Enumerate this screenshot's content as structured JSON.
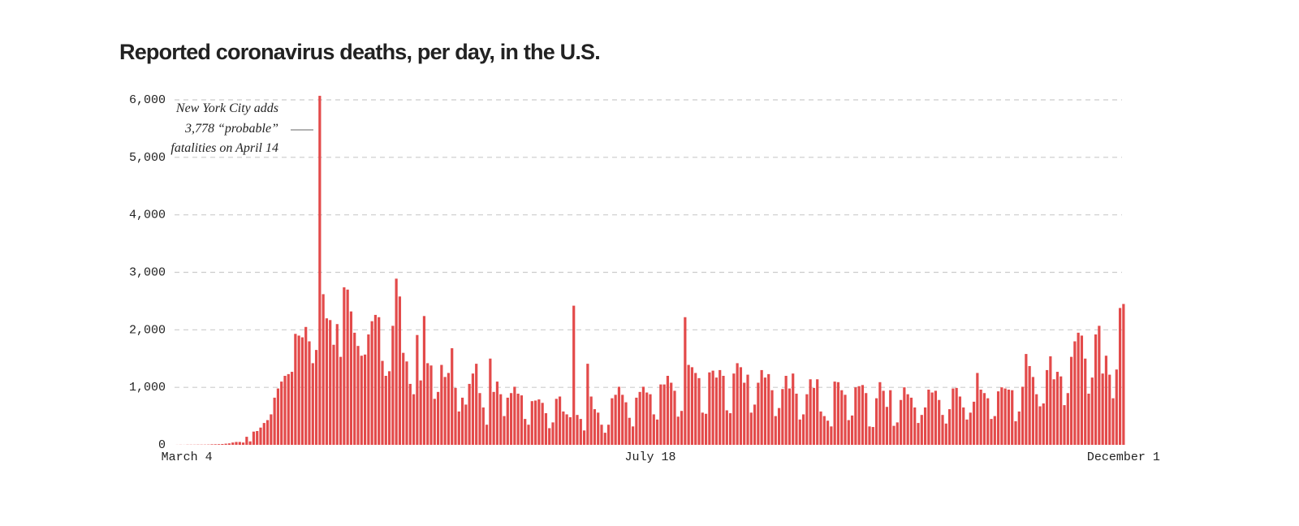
{
  "chart_data": {
    "type": "bar",
    "title": "Reported coronavirus deaths, per day, in the U.S.",
    "annotation": [
      "New York City adds",
      "3,778 “probable”",
      "fatalities on April 14"
    ],
    "categories": [
      "March 4",
      null,
      null,
      null,
      null,
      null,
      null,
      null,
      null,
      null,
      null,
      null,
      null,
      null,
      null,
      null,
      null,
      null,
      null,
      null,
      null,
      null,
      null,
      null,
      null,
      null,
      null,
      null,
      null,
      null,
      null,
      null,
      null,
      null,
      null,
      null,
      null,
      null,
      null,
      null,
      null,
      null,
      null,
      null,
      null,
      null,
      null,
      null,
      null,
      null,
      null,
      null,
      null,
      null,
      null,
      null,
      null,
      null,
      null,
      null,
      null,
      null,
      null,
      null,
      null,
      null,
      null,
      null,
      null,
      null,
      null,
      null,
      null,
      null,
      null,
      null,
      null,
      null,
      null,
      null,
      null,
      null,
      null,
      null,
      null,
      null,
      null,
      null,
      null,
      null,
      null,
      null,
      null,
      null,
      null,
      null,
      null,
      null,
      null,
      null,
      null,
      null,
      null,
      null,
      null,
      null,
      null,
      null,
      null,
      null,
      null,
      null,
      null,
      null,
      null,
      null,
      null,
      null,
      null,
      null,
      null,
      null,
      null,
      null,
      null,
      null,
      null,
      null,
      null,
      null,
      null,
      null,
      null,
      null,
      null,
      null,
      "July 18",
      null,
      null,
      null,
      null,
      null,
      null,
      null,
      null,
      null,
      null,
      null,
      null,
      null,
      null,
      null,
      null,
      null,
      null,
      null,
      null,
      null,
      null,
      null,
      null,
      null,
      null,
      null,
      null,
      null,
      null,
      null,
      null,
      null,
      null,
      null,
      null,
      null,
      null,
      null,
      null,
      null,
      null,
      null,
      null,
      null,
      null,
      null,
      null,
      null,
      null,
      null,
      null,
      null,
      null,
      null,
      null,
      null,
      null,
      null,
      null,
      null,
      null,
      null,
      null,
      null,
      null,
      null,
      null,
      null,
      null,
      null,
      null,
      null,
      null,
      null,
      null,
      null,
      null,
      null,
      null,
      null,
      null,
      null,
      null,
      null,
      null,
      null,
      null,
      null,
      null,
      null,
      null,
      null,
      null,
      null,
      null,
      null,
      null,
      null,
      null,
      null,
      null,
      null,
      null,
      null,
      null,
      null,
      null,
      null,
      null,
      null,
      null,
      null,
      null,
      null,
      null,
      null,
      null,
      null,
      null,
      null,
      null,
      null,
      null,
      null,
      null,
      null,
      null,
      null,
      null,
      null,
      null,
      null,
      null,
      null,
      "December 1"
    ],
    "values": [
      1,
      2,
      1,
      3,
      3,
      3,
      4,
      4,
      4,
      5,
      9,
      10,
      11,
      14,
      20,
      25,
      40,
      50,
      50,
      40,
      140,
      60,
      230,
      240,
      300,
      380,
      430,
      530,
      820,
      980,
      1100,
      1200,
      1230,
      1270,
      1930,
      1900,
      1870,
      2050,
      1800,
      1420,
      1650,
      6070,
      2620,
      2200,
      2170,
      1740,
      2100,
      1530,
      2740,
      2700,
      2320,
      1950,
      1720,
      1550,
      1570,
      1920,
      2150,
      2260,
      2220,
      1460,
      1200,
      1280,
      2070,
      2890,
      2580,
      1600,
      1450,
      1060,
      880,
      1910,
      1120,
      2240,
      1420,
      1380,
      800,
      920,
      1390,
      1180,
      1250,
      1680,
      990,
      580,
      820,
      700,
      1060,
      1240,
      1410,
      900,
      650,
      350,
      1500,
      920,
      1100,
      880,
      500,
      820,
      900,
      1010,
      890,
      860,
      450,
      350,
      760,
      770,
      790,
      730,
      550,
      290,
      390,
      800,
      840,
      580,
      530,
      480,
      2420,
      520,
      450,
      250,
      1410,
      840,
      620,
      560,
      350,
      210,
      350,
      810,
      870,
      1010,
      870,
      740,
      470,
      320,
      820,
      920,
      1010,
      910,
      880,
      530,
      440,
      1050,
      1050,
      1200,
      1080,
      940,
      490,
      590,
      2220,
      1390,
      1350,
      1250,
      1160,
      560,
      540,
      1260,
      1290,
      1170,
      1300,
      1200,
      600,
      550,
      1240,
      1420,
      1350,
      1080,
      1220,
      560,
      700,
      1080,
      1300,
      1170,
      1230,
      950,
      500,
      640,
      970,
      1200,
      980,
      1240,
      890,
      440,
      530,
      880,
      1140,
      990,
      1140,
      580,
      500,
      420,
      320,
      1100,
      1090,
      950,
      870,
      430,
      510,
      1000,
      1020,
      1040,
      900,
      320,
      310,
      810,
      1090,
      940,
      660,
      950,
      330,
      390,
      780,
      1000,
      880,
      820,
      650,
      380,
      520,
      650,
      960,
      910,
      940,
      780,
      520,
      370,
      620,
      980,
      990,
      840,
      650,
      440,
      560,
      750,
      1250,
      960,
      900,
      810,
      450,
      500,
      930,
      1000,
      980,
      960,
      950,
      410,
      580,
      1010,
      1580,
      1370,
      1180,
      880,
      670,
      720,
      1300,
      1540,
      1140,
      1270,
      1190,
      690,
      900,
      1530,
      1800,
      1950,
      1900,
      1500,
      890,
      1170,
      1920,
      2070,
      1240,
      1550,
      1220,
      810,
      1310,
      2380,
      2450
    ],
    "color": "#e34a4a",
    "ylim": [
      0,
      6000
    ],
    "yticks": [
      0,
      {
        "value": 1000,
        "label": "1,000"
      },
      {
        "value": 2000,
        "label": "2,000"
      },
      {
        "value": 3000,
        "label": "3,000"
      },
      {
        "value": 4000,
        "label": "4,000"
      },
      {
        "value": 5000,
        "label": "5,000"
      },
      {
        "value": 6000,
        "label": "6,000"
      }
    ],
    "grid": true
  }
}
